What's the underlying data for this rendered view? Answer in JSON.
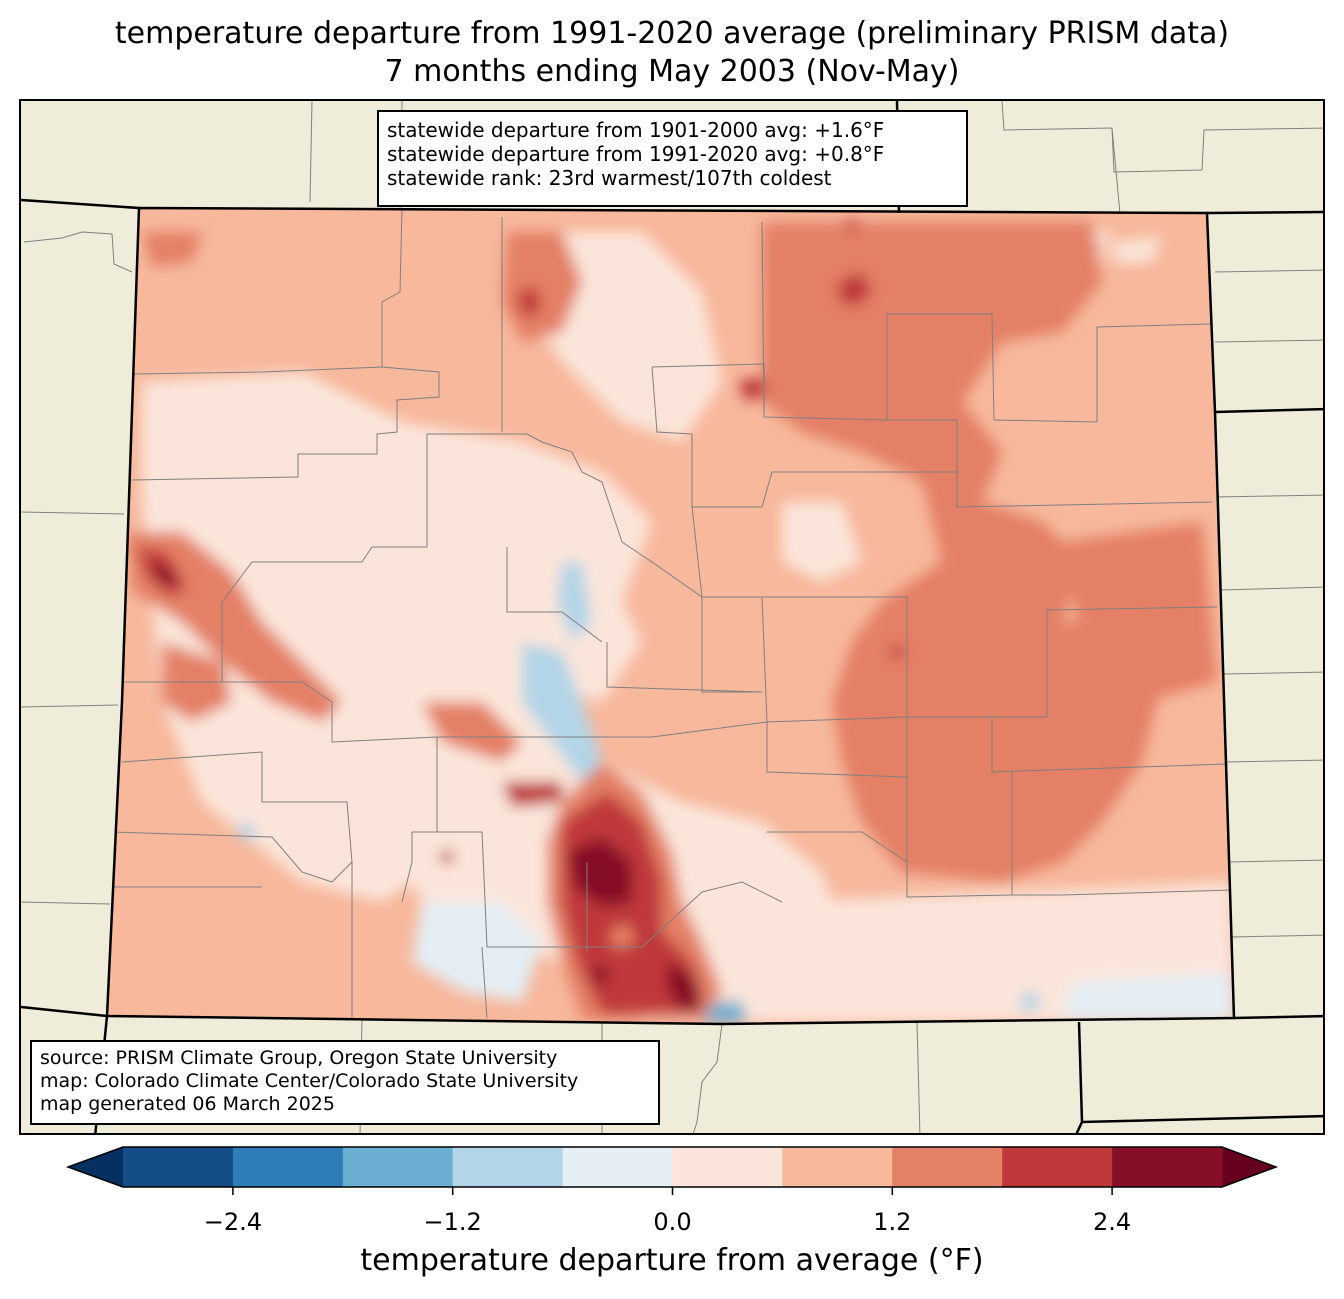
{
  "title": {
    "line1": "temperature departure from 1991-2020 average (preliminary PRISM data)",
    "line2": "7 months ending May 2003 (Nov-May)"
  },
  "stats": {
    "line1": "statewide departure from 1901-2000 avg: +1.6°F",
    "line2": "statewide departure from 1991-2020 avg: +0.8°F",
    "line3": "statewide rank: 23rd warmest/107th coldest"
  },
  "source": {
    "line1": "source: PRISM Climate Group, Oregon State University",
    "line2": "map: Colorado Climate Center/Colorado State University",
    "line3": "map generated 06 March 2025"
  },
  "colorbar": {
    "label": "temperature departure from average (°F)",
    "ticks": [
      "−2.4",
      "−1.2",
      "0.0",
      "1.2",
      "2.4"
    ],
    "levels": [
      -3.0,
      -2.4,
      -1.8,
      -1.2,
      -0.6,
      0.0,
      0.6,
      1.2,
      1.8,
      2.4,
      3.0
    ],
    "colors": [
      "#144c87",
      "#2f7db8",
      "#6aafd2",
      "#b2d5e7",
      "#e4eef4",
      "#fbe5da",
      "#f7b89c",
      "#e48066",
      "#c0393a",
      "#860f26"
    ],
    "under_color": "#053061",
    "over_color": "#67001f"
  },
  "colors": {
    "land_outside": "#efedda",
    "county_lines": "#808080",
    "state_lines": "#000000"
  }
}
